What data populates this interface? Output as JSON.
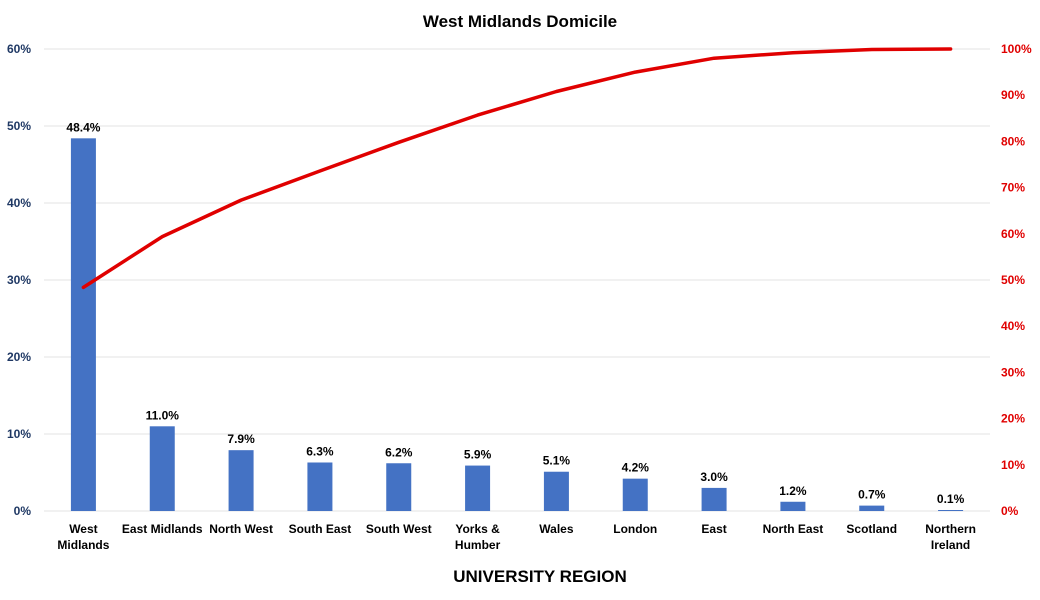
{
  "chart_data": {
    "type": "bar",
    "title": "West Midlands Domicile",
    "xlabel": "UNIVERSITY REGION",
    "categories": [
      [
        "West",
        "Midlands"
      ],
      [
        "East Midlands"
      ],
      [
        "North West"
      ],
      [
        "South East"
      ],
      [
        "South West"
      ],
      [
        "Yorks &",
        "Humber"
      ],
      [
        "Wales"
      ],
      [
        "London"
      ],
      [
        "East"
      ],
      [
        "North East"
      ],
      [
        "Scotland"
      ],
      [
        "Northern",
        "Ireland"
      ]
    ],
    "series": [
      {
        "type": "bar",
        "axis": "left",
        "color": "#4472c4",
        "values": [
          48.4,
          11.0,
          7.9,
          6.3,
          6.2,
          5.9,
          5.1,
          4.2,
          3.0,
          1.2,
          0.7,
          0.1
        ],
        "data_labels": [
          "48.4%",
          "11.0%",
          "7.9%",
          "6.3%",
          "6.2%",
          "5.9%",
          "5.1%",
          "4.2%",
          "3.0%",
          "1.2%",
          "0.7%",
          "0.1%"
        ]
      },
      {
        "type": "line",
        "axis": "right",
        "color": "#e00000",
        "values": [
          48.4,
          59.4,
          67.3,
          73.6,
          79.8,
          85.7,
          90.8,
          95.0,
          98.0,
          99.2,
          99.9,
          100.0
        ]
      }
    ],
    "y_left": {
      "range": [
        0,
        60
      ],
      "ticks": [
        "0%",
        "10%",
        "20%",
        "30%",
        "40%",
        "50%",
        "60%"
      ]
    },
    "y_right": {
      "range": [
        0,
        100
      ],
      "ticks": [
        "0%",
        "10%",
        "20%",
        "30%",
        "40%",
        "50%",
        "60%",
        "70%",
        "80%",
        "90%",
        "100%"
      ]
    },
    "grid": true,
    "legend": "none"
  }
}
